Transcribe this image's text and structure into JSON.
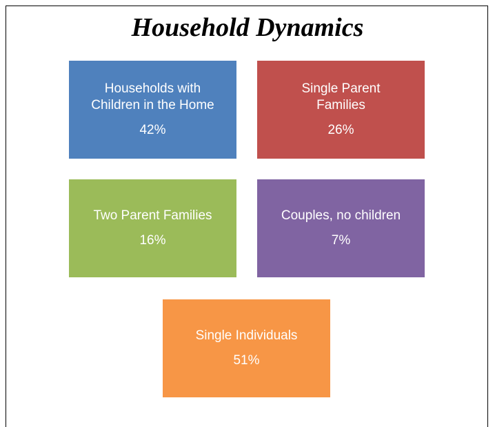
{
  "title": "Household Dynamics",
  "nodes": [
    {
      "label": "Households with Children in the Home",
      "value": "42%"
    },
    {
      "label": "Single Parent Families",
      "value": "26%"
    },
    {
      "label": "Two Parent Families",
      "value": "16%"
    },
    {
      "label": "Couples, no children",
      "value": "7%"
    },
    {
      "label": "Single Individuals",
      "value": "51%"
    }
  ]
}
